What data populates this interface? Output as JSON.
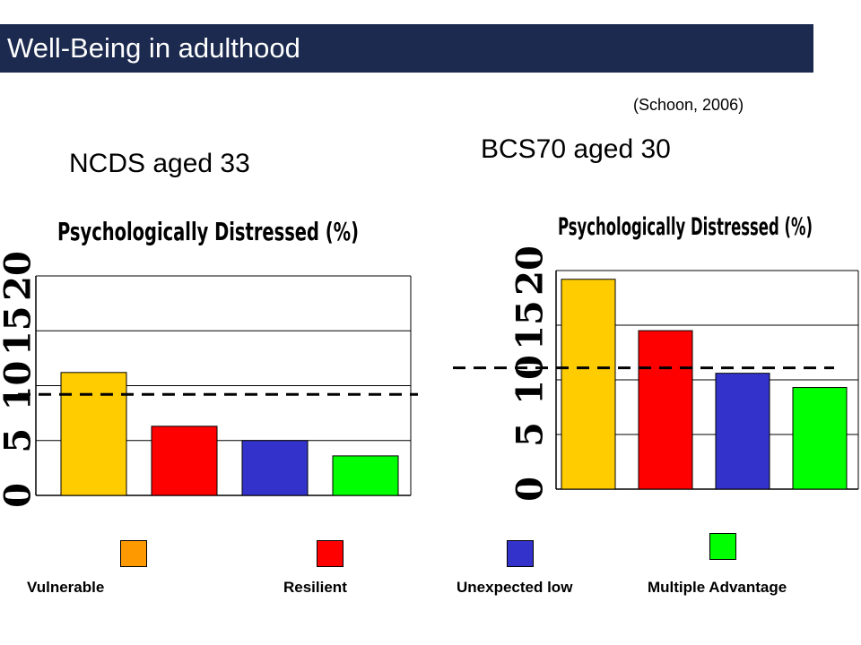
{
  "header": {
    "title": "Well-Being in adulthood",
    "citation": "(Schoon, 2006)"
  },
  "colors": {
    "title_bar": "#1b2a4e",
    "vulnerable": "#ffcc00",
    "vulnerable_legend": "#ff9900",
    "resilient": "#ff0000",
    "unexpected_low": "#3333cc",
    "multiple_advantage": "#00ff00"
  },
  "legend": [
    {
      "label": "Vulnerable",
      "color": "#ff9900"
    },
    {
      "label": "Resilient",
      "color": "#ff0000"
    },
    {
      "label": "Unexpected low",
      "color": "#3333cc"
    },
    {
      "label": "Multiple Advantage",
      "color": "#00ff00"
    }
  ],
  "chart_data": [
    {
      "type": "bar",
      "subtitle": "NCDS aged 33",
      "title": "Psychologically Distressed (%)",
      "categories": [
        "Vulnerable",
        "Resilient",
        "Unexpected low",
        "Multiple Advantage"
      ],
      "values": [
        11.2,
        6.3,
        5.0,
        3.6
      ],
      "colors": [
        "#ffcc00",
        "#ff0000",
        "#3333cc",
        "#00ff00"
      ],
      "ylim": [
        0,
        20
      ],
      "yticks": [
        0,
        5,
        10,
        15,
        20
      ],
      "reference_line": 9.2,
      "grid": true
    },
    {
      "type": "bar",
      "subtitle": "BCS70 aged 30",
      "title": "Psychologically Distressed (%)",
      "categories": [
        "Vulnerable",
        "Resilient",
        "Unexpected low",
        "Multiple Advantage"
      ],
      "values": [
        19.2,
        14.5,
        10.6,
        9.3
      ],
      "colors": [
        "#ffcc00",
        "#ff0000",
        "#3333cc",
        "#00ff00"
      ],
      "ylim": [
        0,
        20
      ],
      "yticks": [
        0,
        5,
        10,
        15,
        20
      ],
      "reference_line": 11.1,
      "grid": true
    }
  ]
}
